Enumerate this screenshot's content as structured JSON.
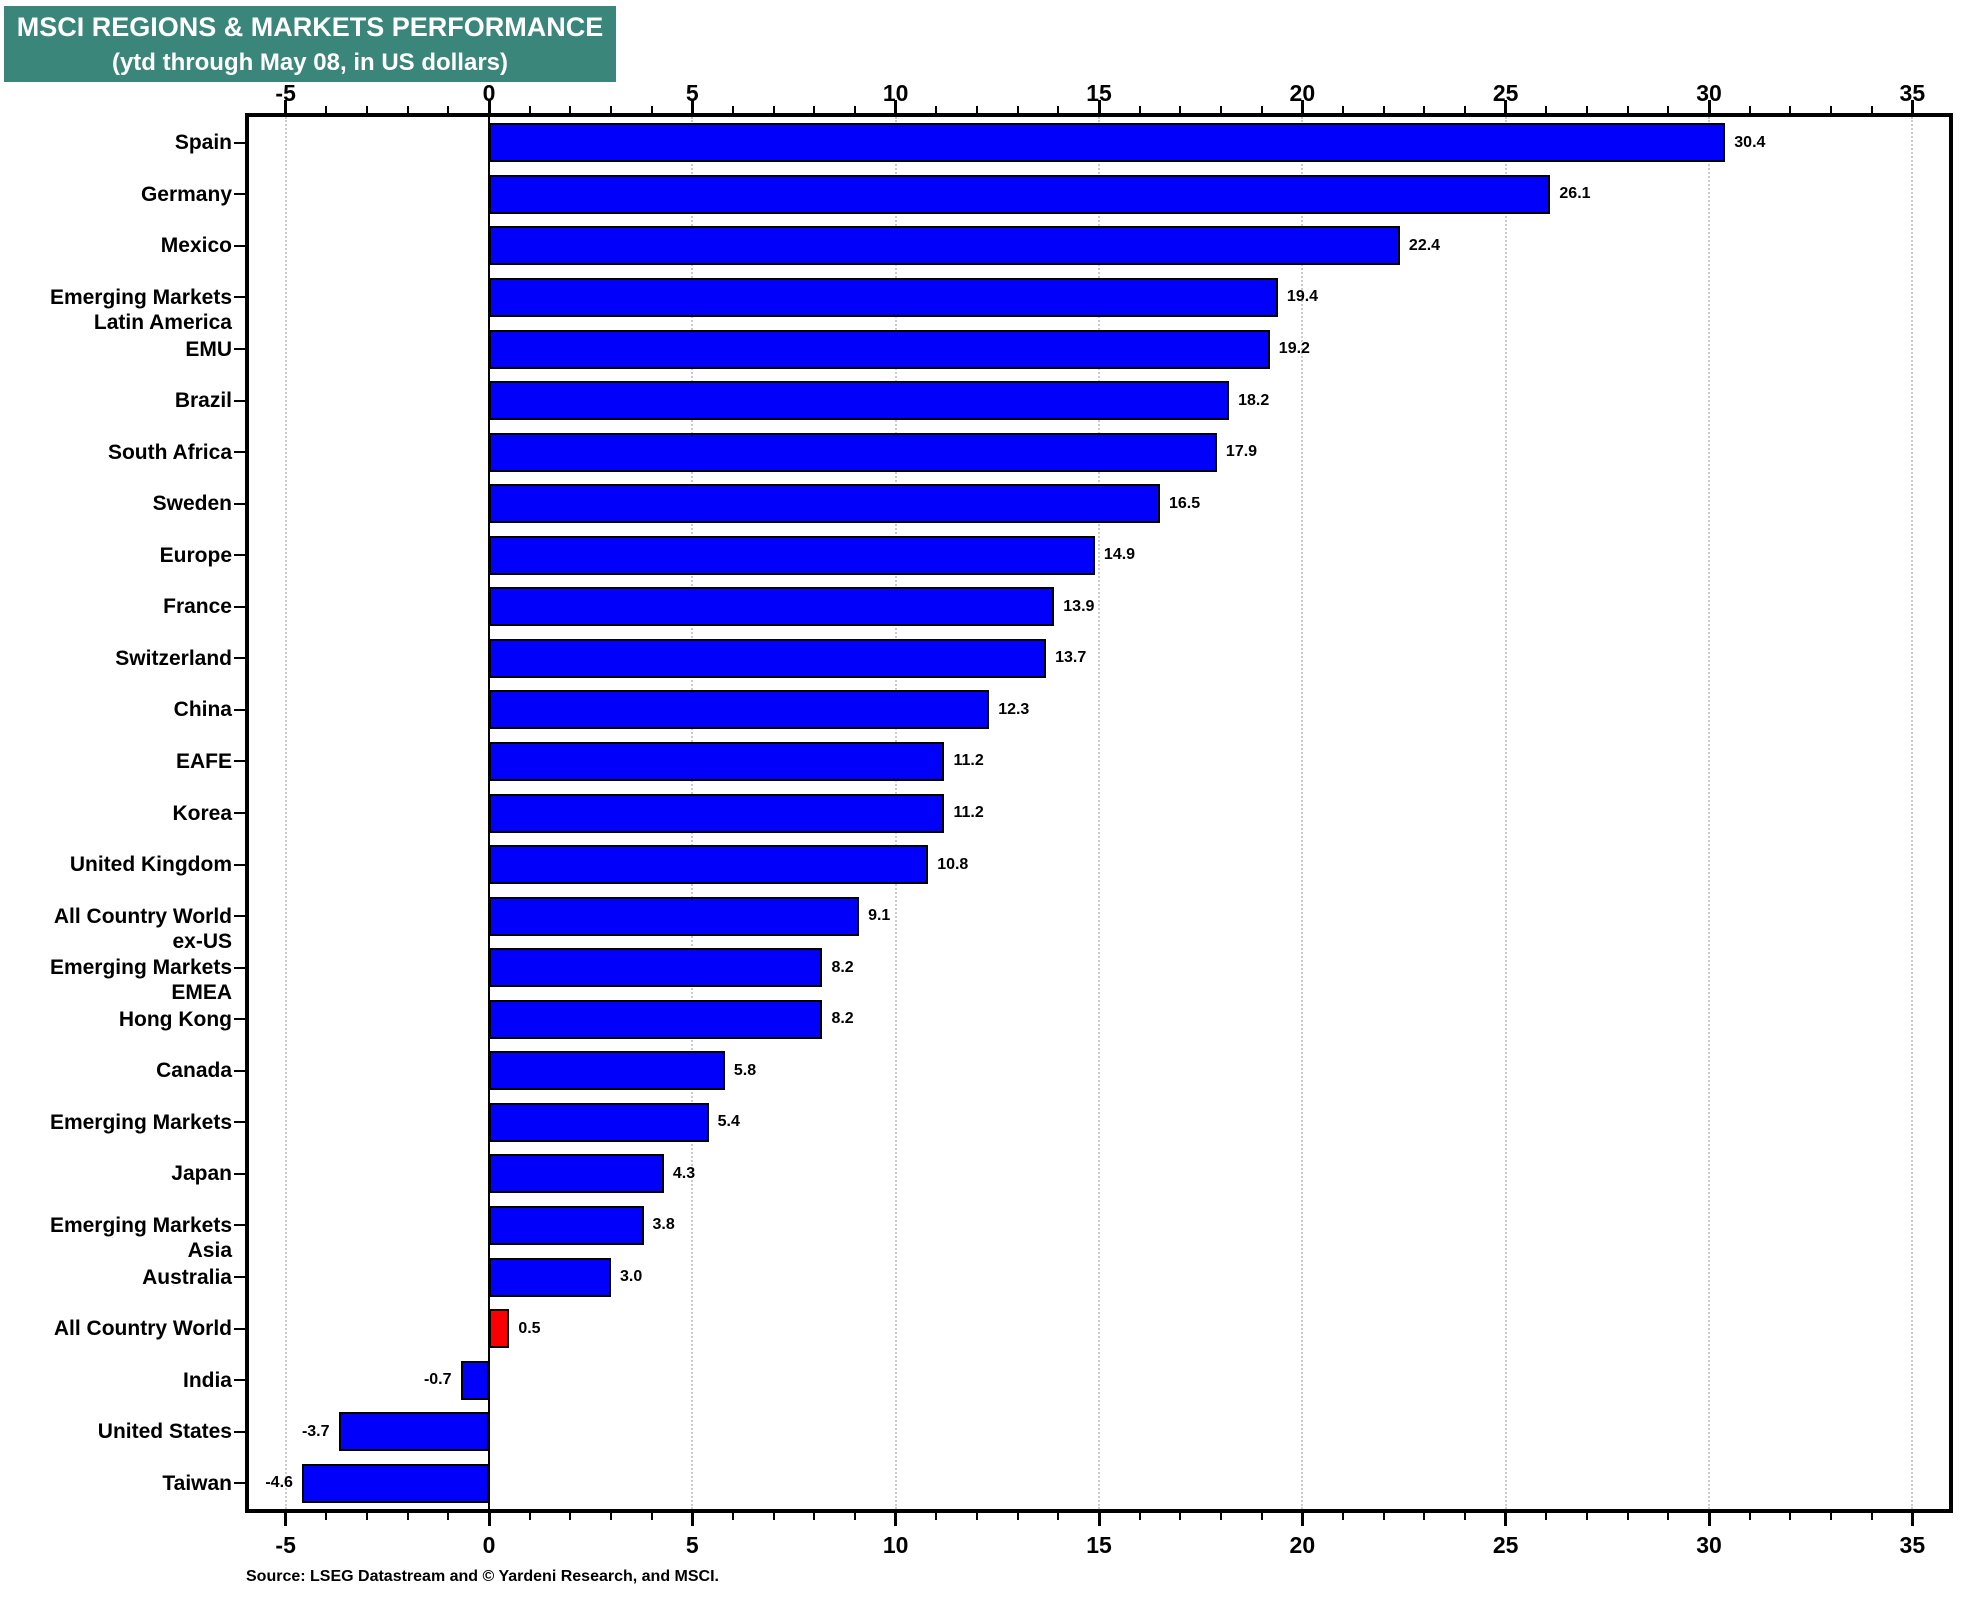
{
  "chart_data": {
    "type": "bar",
    "orientation": "horizontal",
    "title": "MSCI REGIONS & MARKETS PERFORMANCE",
    "subtitle": "(ytd through May 08, in US dollars)",
    "source": "Source: LSEG Datastream and © Yardeni Research, and MSCI.",
    "xlim": [
      -6,
      36
    ],
    "x_major_ticks": [
      -5,
      0,
      5,
      10,
      15,
      20,
      25,
      30,
      35
    ],
    "x_minor_tick_step": 1,
    "grid": {
      "vertical_dotted_at_major_ticks": true,
      "solid_zero_line": true
    },
    "legend": "none",
    "colors": {
      "bar": "#0000fb",
      "highlight_bar": "#fb0000",
      "bar_border": "#000000",
      "title_bg": "#3a867b",
      "title_text": "#ffffff",
      "gridline": "#cbcbcb",
      "axis": "#000000"
    },
    "rows": [
      {
        "label_lines": [
          "Spain"
        ],
        "value": 30.4,
        "display": "30.4"
      },
      {
        "label_lines": [
          "Germany"
        ],
        "value": 26.1,
        "display": "26.1"
      },
      {
        "label_lines": [
          "Mexico"
        ],
        "value": 22.4,
        "display": "22.4"
      },
      {
        "label_lines": [
          "Emerging Markets",
          "Latin America"
        ],
        "value": 19.4,
        "display": "19.4"
      },
      {
        "label_lines": [
          "EMU"
        ],
        "value": 19.2,
        "display": "19.2"
      },
      {
        "label_lines": [
          "Brazil"
        ],
        "value": 18.2,
        "display": "18.2"
      },
      {
        "label_lines": [
          "South Africa"
        ],
        "value": 17.9,
        "display": "17.9"
      },
      {
        "label_lines": [
          "Sweden"
        ],
        "value": 16.5,
        "display": "16.5"
      },
      {
        "label_lines": [
          "Europe"
        ],
        "value": 14.9,
        "display": "14.9"
      },
      {
        "label_lines": [
          "France"
        ],
        "value": 13.9,
        "display": "13.9"
      },
      {
        "label_lines": [
          "Switzerland"
        ],
        "value": 13.7,
        "display": "13.7"
      },
      {
        "label_lines": [
          "China"
        ],
        "value": 12.3,
        "display": "12.3"
      },
      {
        "label_lines": [
          "EAFE"
        ],
        "value": 11.2,
        "display": "11.2"
      },
      {
        "label_lines": [
          "Korea"
        ],
        "value": 11.2,
        "display": "11.2"
      },
      {
        "label_lines": [
          "United Kingdom"
        ],
        "value": 10.8,
        "display": "10.8"
      },
      {
        "label_lines": [
          "All Country World",
          "ex-US"
        ],
        "value": 9.1,
        "display": "9.1"
      },
      {
        "label_lines": [
          "Emerging Markets",
          "EMEA"
        ],
        "value": 8.2,
        "display": "8.2"
      },
      {
        "label_lines": [
          "Hong Kong"
        ],
        "value": 8.2,
        "display": "8.2"
      },
      {
        "label_lines": [
          "Canada"
        ],
        "value": 5.8,
        "display": "5.8"
      },
      {
        "label_lines": [
          "Emerging Markets"
        ],
        "value": 5.4,
        "display": "5.4"
      },
      {
        "label_lines": [
          "Japan"
        ],
        "value": 4.3,
        "display": "4.3"
      },
      {
        "label_lines": [
          "Emerging Markets",
          "Asia"
        ],
        "value": 3.8,
        "display": "3.8"
      },
      {
        "label_lines": [
          "Australia"
        ],
        "value": 3.0,
        "display": "3.0"
      },
      {
        "label_lines": [
          "All Country World"
        ],
        "value": 0.5,
        "display": "0.5",
        "highlight": true
      },
      {
        "label_lines": [
          "India"
        ],
        "value": -0.7,
        "display": "-0.7"
      },
      {
        "label_lines": [
          "United States"
        ],
        "value": -3.7,
        "display": "-3.7"
      },
      {
        "label_lines": [
          "Taiwan"
        ],
        "value": -4.6,
        "display": "-4.6"
      }
    ]
  }
}
